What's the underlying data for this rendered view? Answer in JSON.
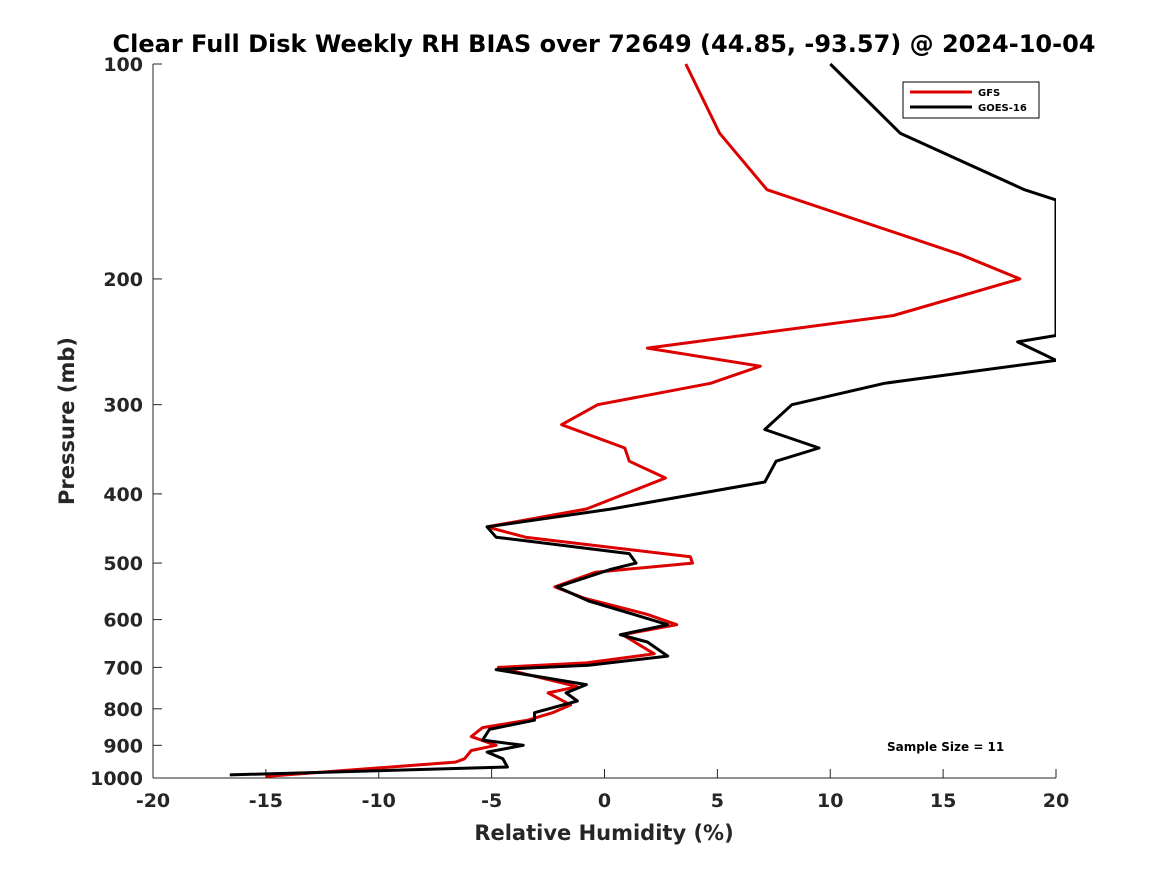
{
  "chart_data": {
    "type": "line",
    "title": "Clear Full Disk Weekly RH BIAS over 72649 (44.85, -93.57) @ 2024-10-04",
    "xlabel": "Relative Humidity (%)",
    "ylabel": "Pressure (mb)",
    "xlim": [
      -20,
      20
    ],
    "ylim": [
      1000,
      100
    ],
    "yscale": "log",
    "x_ticks": [
      "-20",
      "-15",
      "-10",
      "-5",
      "0",
      "5",
      "10",
      "15",
      "20"
    ],
    "y_ticks": [
      "100",
      "200",
      "300",
      "400",
      "500",
      "600",
      "700",
      "800",
      "900",
      "1000"
    ],
    "grid": false,
    "legend_position": "top-right",
    "annotation": "Sample Size = 11",
    "series": [
      {
        "name": "GFS",
        "color": "#dd0000",
        "points": [
          [
            3.6,
            100
          ],
          [
            5.1,
            125
          ],
          [
            7.2,
            150
          ],
          [
            15.8,
            185
          ],
          [
            18.4,
            200
          ],
          [
            12.8,
            225
          ],
          [
            1.9,
            250
          ],
          [
            6.9,
            265
          ],
          [
            4.7,
            280
          ],
          [
            -0.3,
            300
          ],
          [
            -1.9,
            320
          ],
          [
            0.9,
            345
          ],
          [
            1.1,
            360
          ],
          [
            2.7,
            380
          ],
          [
            -0.8,
            420
          ],
          [
            -5.2,
            445
          ],
          [
            -3.5,
            460
          ],
          [
            3.8,
            490
          ],
          [
            3.9,
            500
          ],
          [
            -0.4,
            515
          ],
          [
            -2.2,
            540
          ],
          [
            -0.9,
            560
          ],
          [
            1.9,
            590
          ],
          [
            3.2,
            610
          ],
          [
            0.8,
            630
          ],
          [
            2.2,
            670
          ],
          [
            -0.8,
            690
          ],
          [
            -4.7,
            700
          ],
          [
            -1.2,
            745
          ],
          [
            -2.5,
            760
          ],
          [
            -1.5,
            790
          ],
          [
            -2.3,
            810
          ],
          [
            -3.4,
            830
          ],
          [
            -5.4,
            850
          ],
          [
            -5.9,
            875
          ],
          [
            -4.8,
            900
          ],
          [
            -5.9,
            915
          ],
          [
            -6.2,
            940
          ],
          [
            -6.6,
            950
          ],
          [
            -15.0,
            995
          ]
        ]
      },
      {
        "name": "GOES-16",
        "color": "#000000",
        "points": [
          [
            10.0,
            100
          ],
          [
            13.1,
            125
          ],
          [
            18.6,
            150
          ],
          [
            20.0,
            155
          ],
          [
            20.0,
            240
          ],
          [
            18.3,
            245
          ],
          [
            20.0,
            260
          ],
          [
            12.4,
            280
          ],
          [
            8.3,
            300
          ],
          [
            7.1,
            325
          ],
          [
            9.5,
            345
          ],
          [
            7.6,
            360
          ],
          [
            7.1,
            385
          ],
          [
            0.3,
            420
          ],
          [
            -5.2,
            445
          ],
          [
            -4.8,
            460
          ],
          [
            1.1,
            485
          ],
          [
            1.4,
            500
          ],
          [
            0.3,
            510
          ],
          [
            -2.1,
            540
          ],
          [
            -0.7,
            565
          ],
          [
            1.3,
            590
          ],
          [
            2.8,
            610
          ],
          [
            0.7,
            630
          ],
          [
            1.9,
            645
          ],
          [
            2.8,
            675
          ],
          [
            -0.7,
            695
          ],
          [
            -4.8,
            705
          ],
          [
            -0.8,
            740
          ],
          [
            -1.7,
            760
          ],
          [
            -1.2,
            780
          ],
          [
            -3.1,
            810
          ],
          [
            -3.1,
            830
          ],
          [
            -5.1,
            855
          ],
          [
            -5.4,
            885
          ],
          [
            -3.6,
            900
          ],
          [
            -5.2,
            920
          ],
          [
            -4.5,
            940
          ],
          [
            -4.3,
            965
          ],
          [
            -16.6,
            990
          ]
        ]
      }
    ]
  }
}
